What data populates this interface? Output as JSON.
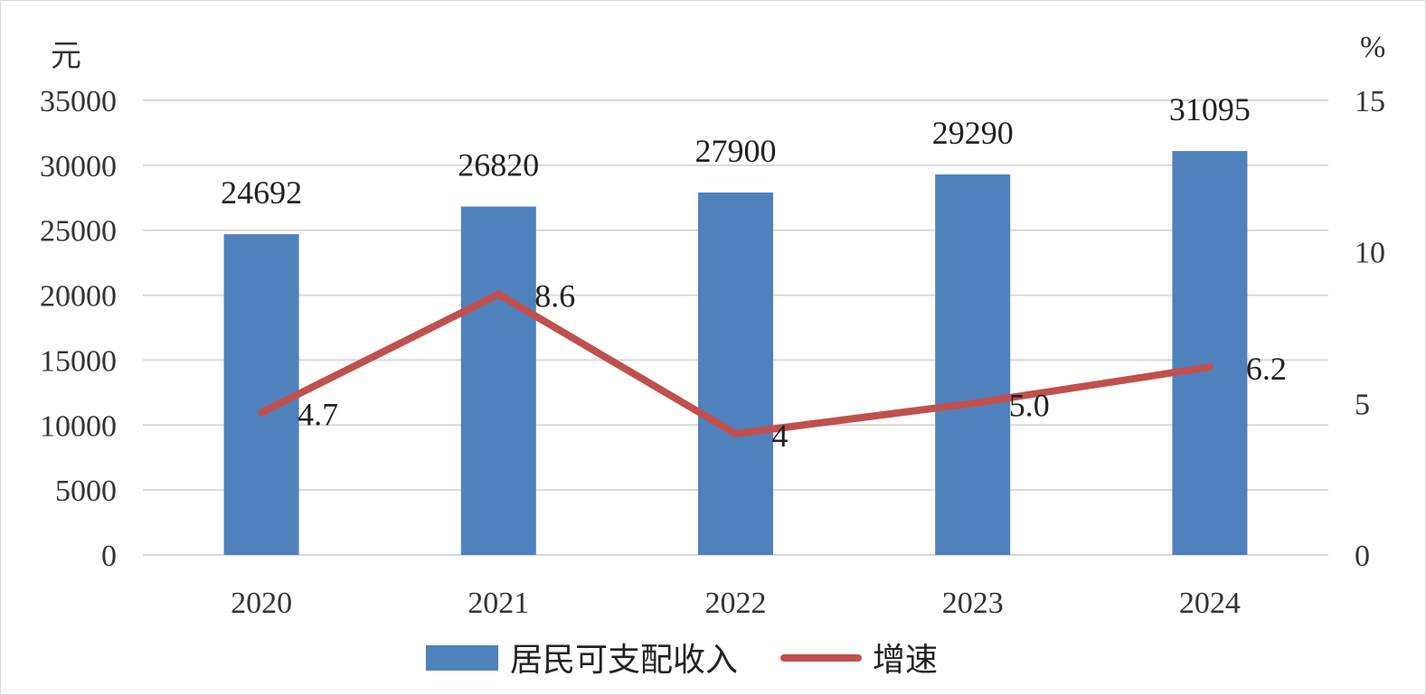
{
  "chart_data": {
    "type": "bar",
    "categories": [
      "2020",
      "2021",
      "2022",
      "2023",
      "2024"
    ],
    "series": [
      {
        "name": "居民可支配收入",
        "type": "bar",
        "axis": "left",
        "color": "#4F81BD",
        "values": [
          24692,
          26820,
          27900,
          29290,
          31095
        ],
        "labels": [
          "24692",
          "26820",
          "27900",
          "29290",
          "31095"
        ]
      },
      {
        "name": "增速",
        "type": "line",
        "axis": "right",
        "color": "#C0504D",
        "values": [
          4.7,
          8.6,
          4,
          5.0,
          6.2
        ],
        "labels": [
          "4.7",
          "8.6",
          "4",
          "5.0",
          "6.2"
        ]
      }
    ],
    "y_left": {
      "unit": "元",
      "min": 0,
      "max": 35000,
      "ticks": [
        "0",
        "5000",
        "10000",
        "15000",
        "20000",
        "25000",
        "30000",
        "35000"
      ]
    },
    "y_right": {
      "unit": "%",
      "min": 0,
      "max": 15,
      "ticks": [
        "0",
        "5",
        "10",
        "15"
      ]
    },
    "grid": true,
    "grid_color": "#d9d9d9",
    "legend_position": "bottom"
  }
}
